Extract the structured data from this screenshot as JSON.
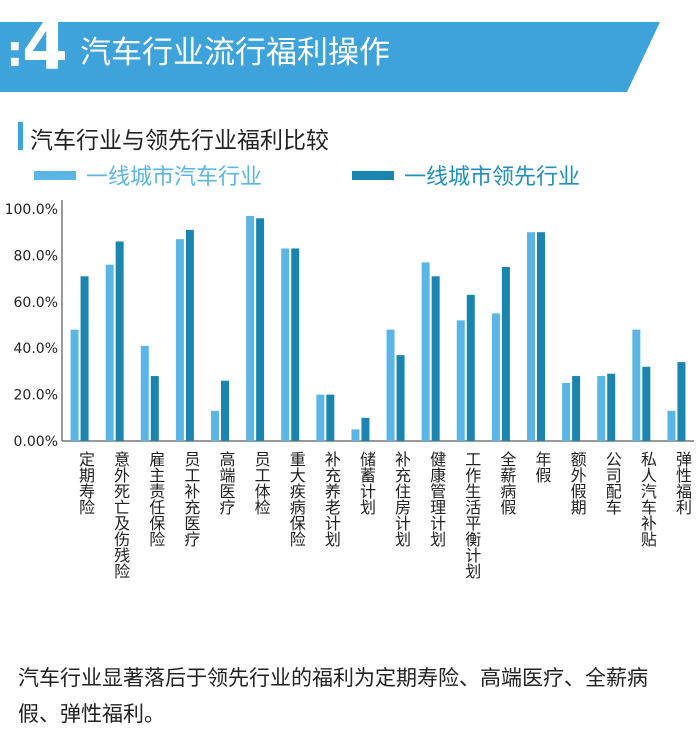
{
  "header": {
    "colon": ":",
    "number": "4",
    "title": "汽车行业流行福利操作"
  },
  "caption": "汽车行业显著落后于领先行业的福利为定期寿险、高端医疗、全薪病假、弹性福利。",
  "colors": {
    "banner": "#3ea3da",
    "series_1": "#5bb6e6",
    "series_2": "#1a86b0"
  },
  "chart_data": {
    "type": "bar",
    "title": "汽车行业与领先行业福利比较",
    "xlabel": "",
    "ylabel": "",
    "ylim": [
      0,
      100
    ],
    "yticks": [
      "0.00%",
      "20.0%",
      "40.0%",
      "60.0%",
      "80.0%",
      "100.0%"
    ],
    "grid": false,
    "legend_position": "top",
    "categories": [
      "定期寿险",
      "意外死亡及伤残险",
      "雇主责任保险",
      "员工补充医疗",
      "高端医疗",
      "员工体检",
      "重大疾病保险",
      "补充养老计划",
      "储蓄计划",
      "补充住房计划",
      "健康管理计划",
      "工作生活平衡计划",
      "全薪病假",
      "年假",
      "额外假期",
      "公司配车",
      "私人汽车补贴",
      "弹性福利"
    ],
    "series": [
      {
        "name": "一线城市汽车行业",
        "color": "#5bb6e6",
        "values": [
          48,
          76,
          41,
          87,
          13,
          97,
          83,
          20,
          5,
          48,
          77,
          52,
          55,
          90,
          25,
          28,
          48,
          13
        ]
      },
      {
        "name": "一线城市领先行业",
        "color": "#1a86b0",
        "values": [
          71,
          86,
          28,
          91,
          26,
          96,
          83,
          20,
          10,
          37,
          71,
          63,
          75,
          90,
          28,
          29,
          32,
          34
        ]
      }
    ]
  }
}
